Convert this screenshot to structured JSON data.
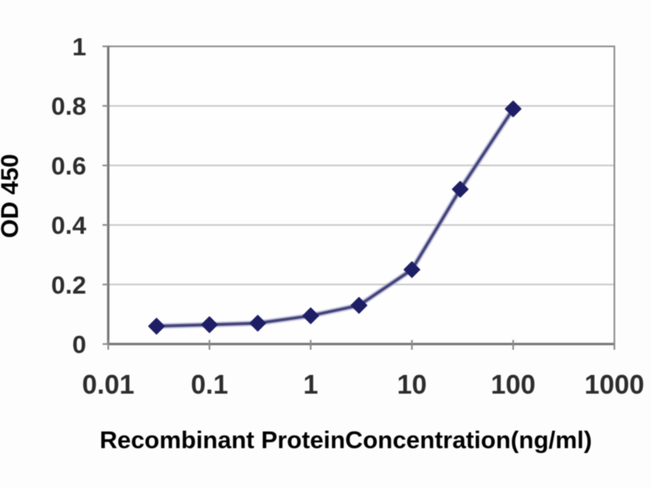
{
  "chart_data": {
    "type": "line",
    "title": "",
    "xlabel": "Recombinant ProteinConcentration(ng/ml)",
    "ylabel": "OD 450",
    "x_scale": "log",
    "xlim": [
      0.01,
      1000
    ],
    "ylim": [
      0,
      1
    ],
    "x_ticks": [
      0.01,
      0.1,
      1,
      10,
      100,
      1000
    ],
    "x_tick_labels": [
      "0.01",
      "0.1",
      "1",
      "10",
      "100",
      "1000"
    ],
    "y_ticks": [
      0,
      0.2,
      0.4,
      0.6,
      0.8,
      1
    ],
    "y_tick_labels": [
      "0",
      "0.2",
      "0.4",
      "0.6",
      "0.8",
      "1"
    ],
    "grid": "horizontal",
    "legend": "none",
    "series": [
      {
        "name": "OD450",
        "marker": "diamond",
        "x": [
          0.03,
          0.1,
          0.3,
          1,
          3,
          10,
          30,
          100
        ],
        "y": [
          0.06,
          0.065,
          0.07,
          0.095,
          0.13,
          0.25,
          0.52,
          0.79
        ]
      }
    ]
  },
  "colors": {
    "background": "#fdfdfd",
    "plot_background": "#fefefe",
    "gridline": "#c9c9c9",
    "frame": "#8e8e8e",
    "axis": "#787878",
    "tick": "#8a8a8a",
    "text": "#2d2d2d",
    "series_line_core": "#45457b",
    "series_line_halo": "#9b9bc8",
    "marker_fill": "#1e1e66"
  }
}
